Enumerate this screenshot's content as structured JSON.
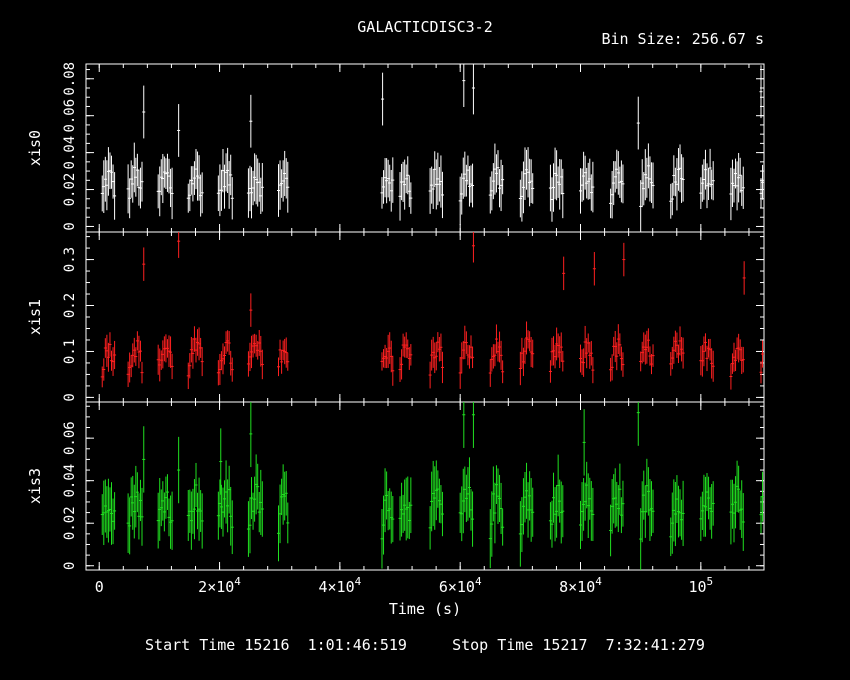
{
  "chart_data": {
    "type": "scatter",
    "title": "GALACTICDISC3-2",
    "subtitle": "Bin Size: 256.67 s",
    "xlabel": "Time (s)",
    "xlim": [
      -2200,
      110500
    ],
    "x_ticks": [
      {
        "value": 0,
        "base": "0",
        "exp": ""
      },
      {
        "value": 20000,
        "base": "2×10",
        "exp": "4"
      },
      {
        "value": 40000,
        "base": "4×10",
        "exp": "4"
      },
      {
        "value": 60000,
        "base": "6×10",
        "exp": "4"
      },
      {
        "value": 80000,
        "base": "8×10",
        "exp": "4"
      },
      {
        "value": 100000,
        "base": "10",
        "exp": "5"
      }
    ],
    "observation_windows": [
      [
        500,
        2800
      ],
      [
        4800,
        7300
      ],
      [
        9800,
        12300
      ],
      [
        14800,
        17300
      ],
      [
        19800,
        22300
      ],
      [
        24800,
        27300
      ],
      [
        29800,
        31500
      ],
      [
        47000,
        49000
      ],
      [
        50000,
        52000
      ],
      [
        55000,
        57300
      ],
      [
        60000,
        62300
      ],
      [
        65000,
        67300
      ],
      [
        70000,
        72300
      ],
      [
        75000,
        77300
      ],
      [
        80000,
        82300
      ],
      [
        85000,
        87300
      ],
      [
        90000,
        92300
      ],
      [
        95000,
        97300
      ],
      [
        100000,
        102300
      ],
      [
        105000,
        107300
      ],
      [
        110000,
        110400
      ]
    ],
    "panels": [
      {
        "name": "xis0",
        "color": "#ffffff",
        "ylim": [
          -0.003,
          0.088
        ],
        "yticks": [
          0,
          0.02,
          0.04,
          0.06,
          0.08
        ],
        "ytick_labels": [
          "0",
          "0.02",
          "0.04",
          "0.06",
          "0.08"
        ],
        "typical_rate": 0.023,
        "typical_error": 0.011,
        "notable_points": [
          [
            7400,
            0.062
          ],
          [
            13200,
            0.052
          ],
          [
            25200,
            0.057
          ],
          [
            47100,
            0.069
          ],
          [
            60600,
            0.079
          ],
          [
            62200,
            0.075
          ],
          [
            89600,
            0.056
          ],
          [
            110000,
            0.073
          ]
        ]
      },
      {
        "name": "xis1",
        "color": "#ff2020",
        "ylim": [
          -0.01,
          0.36
        ],
        "yticks": [
          0,
          0.1,
          0.2,
          0.3
        ],
        "ytick_labels": [
          "0",
          "0.1",
          "0.2",
          "0.3"
        ],
        "typical_rate": 0.09,
        "typical_error": 0.028,
        "notable_points": [
          [
            7400,
            0.29
          ],
          [
            13200,
            0.34
          ],
          [
            25200,
            0.19
          ],
          [
            62200,
            0.33
          ],
          [
            77200,
            0.27
          ],
          [
            82300,
            0.28
          ],
          [
            87200,
            0.3
          ],
          [
            107200,
            0.26
          ]
        ]
      },
      {
        "name": "xis3",
        "color": "#20e020",
        "ylim": [
          -0.002,
          0.077
        ],
        "yticks": [
          0,
          0.02,
          0.04,
          0.06
        ],
        "ytick_labels": [
          "0",
          "0.02",
          "0.04",
          "0.06"
        ],
        "typical_rate": 0.027,
        "typical_error": 0.012,
        "notable_points": [
          [
            7400,
            0.05
          ],
          [
            13200,
            0.045
          ],
          [
            20200,
            0.049
          ],
          [
            25200,
            0.062
          ],
          [
            60600,
            0.071
          ],
          [
            62200,
            0.071
          ],
          [
            80600,
            0.058
          ],
          [
            89600,
            0.072
          ]
        ]
      }
    ]
  },
  "footer": {
    "start_label": "Start Time 15216  1:01:46:519",
    "stop_label": "Stop Time 15217  7:32:41:279"
  }
}
